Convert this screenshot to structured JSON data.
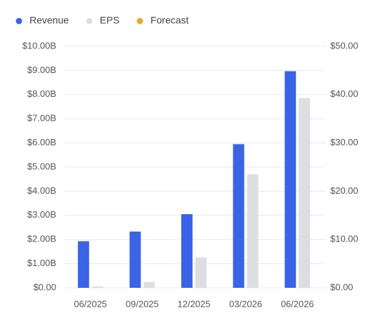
{
  "chart_data": {
    "type": "bar",
    "categories": [
      "06/2025",
      "09/2025",
      "12/2025",
      "03/2026",
      "06/2026"
    ],
    "series": [
      {
        "name": "Revenue",
        "color": "#3b63e6",
        "values": [
          1.93,
          2.33,
          3.05,
          5.95,
          8.97
        ]
      },
      {
        "name": "EPS",
        "color": "#dcdee1",
        "axis": "y2",
        "values": [
          0.3,
          1.2,
          6.3,
          23.5,
          39.3
        ]
      },
      {
        "name": "Forecast",
        "color": "#e8a838",
        "values": [
          null,
          null,
          null,
          null,
          null
        ]
      }
    ],
    "ylim": [
      0,
      10
    ],
    "yticks": [
      {
        "value": 0,
        "label": "$0.00"
      },
      {
        "value": 1,
        "label": "$1.00B"
      },
      {
        "value": 2,
        "label": "$2.00B"
      },
      {
        "value": 3,
        "label": "$3.00B"
      },
      {
        "value": 4,
        "label": "$4.00B"
      },
      {
        "value": 5,
        "label": "$5.00B"
      },
      {
        "value": 6,
        "label": "$6.00B"
      },
      {
        "value": 7,
        "label": "$7.00B"
      },
      {
        "value": 8,
        "label": "$8.00B"
      },
      {
        "value": 9,
        "label": "$9.00B"
      },
      {
        "value": 10,
        "label": "$10.00B"
      }
    ],
    "y2lim": [
      0,
      50
    ],
    "y2ticks": [
      {
        "value": 0,
        "label": "$0.00"
      },
      {
        "value": 10,
        "label": "$10.00"
      },
      {
        "value": 20,
        "label": "$20.00"
      },
      {
        "value": 30,
        "label": "$30.00"
      },
      {
        "value": 40,
        "label": "$40.00"
      },
      {
        "value": 50,
        "label": "$50.00"
      }
    ],
    "grid": true
  }
}
